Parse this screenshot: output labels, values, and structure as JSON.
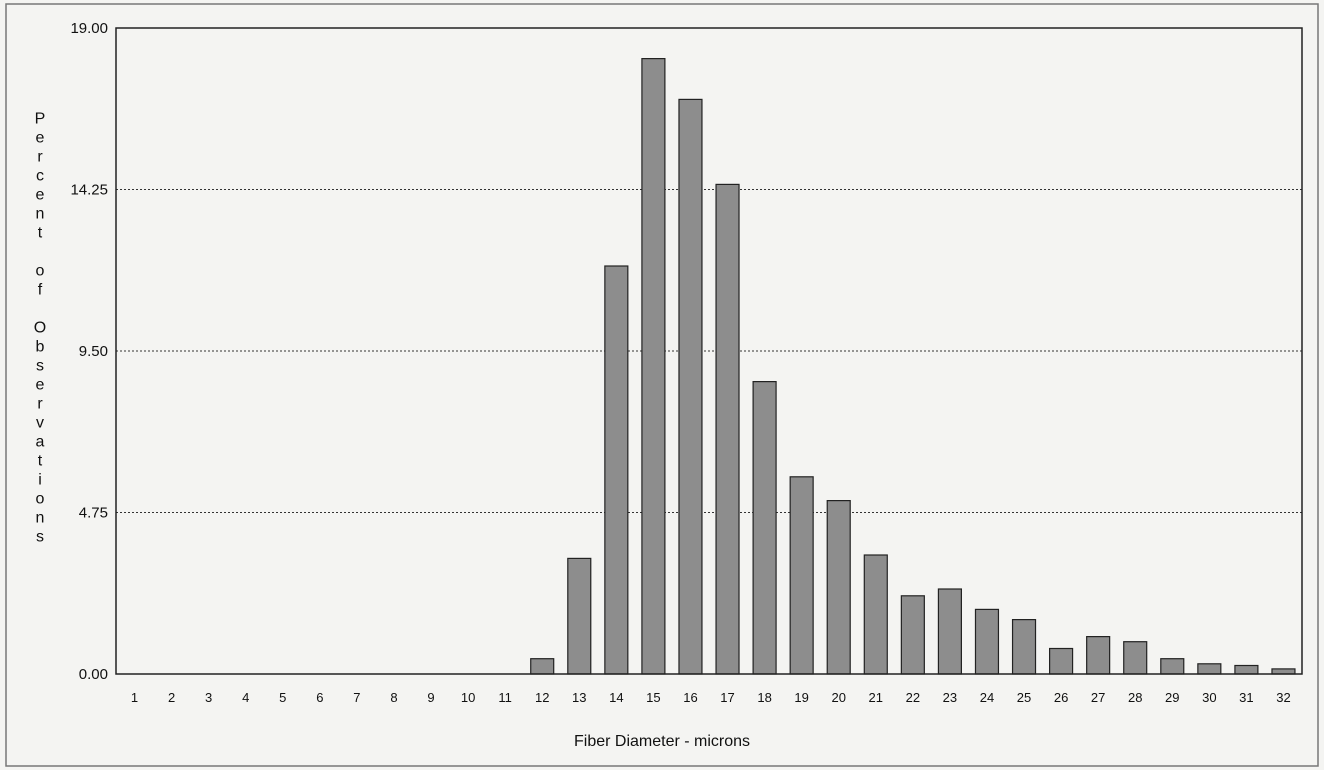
{
  "chart_data": {
    "type": "bar",
    "title": "",
    "xlabel": "Fiber Diameter - microns",
    "ylabel": "Percent of Observations",
    "categories": [
      "1",
      "2",
      "3",
      "4",
      "5",
      "6",
      "7",
      "8",
      "9",
      "10",
      "11",
      "12",
      "13",
      "14",
      "15",
      "16",
      "17",
      "18",
      "19",
      "20",
      "21",
      "22",
      "23",
      "24",
      "25",
      "26",
      "27",
      "28",
      "29",
      "30",
      "31",
      "32"
    ],
    "values": [
      0,
      0,
      0,
      0,
      0,
      0,
      0,
      0,
      0,
      0,
      0,
      0.45,
      3.4,
      12.0,
      18.1,
      16.9,
      14.4,
      8.6,
      5.8,
      5.1,
      3.5,
      2.3,
      2.5,
      1.9,
      1.6,
      0.75,
      1.1,
      0.95,
      0.45,
      0.3,
      0.25,
      0.15
    ],
    "ylim": [
      0,
      19
    ],
    "yticks": [
      "0.00",
      "4.75",
      "9.50",
      "14.25",
      "19.00"
    ],
    "grid": "horizontal-dotted",
    "legend": "none",
    "colors": {
      "bar_fill": "#8d8d8d",
      "bar_stroke": "#222222",
      "axis": "#222222",
      "grid": "#333333",
      "background": "#f4f4f2"
    }
  }
}
